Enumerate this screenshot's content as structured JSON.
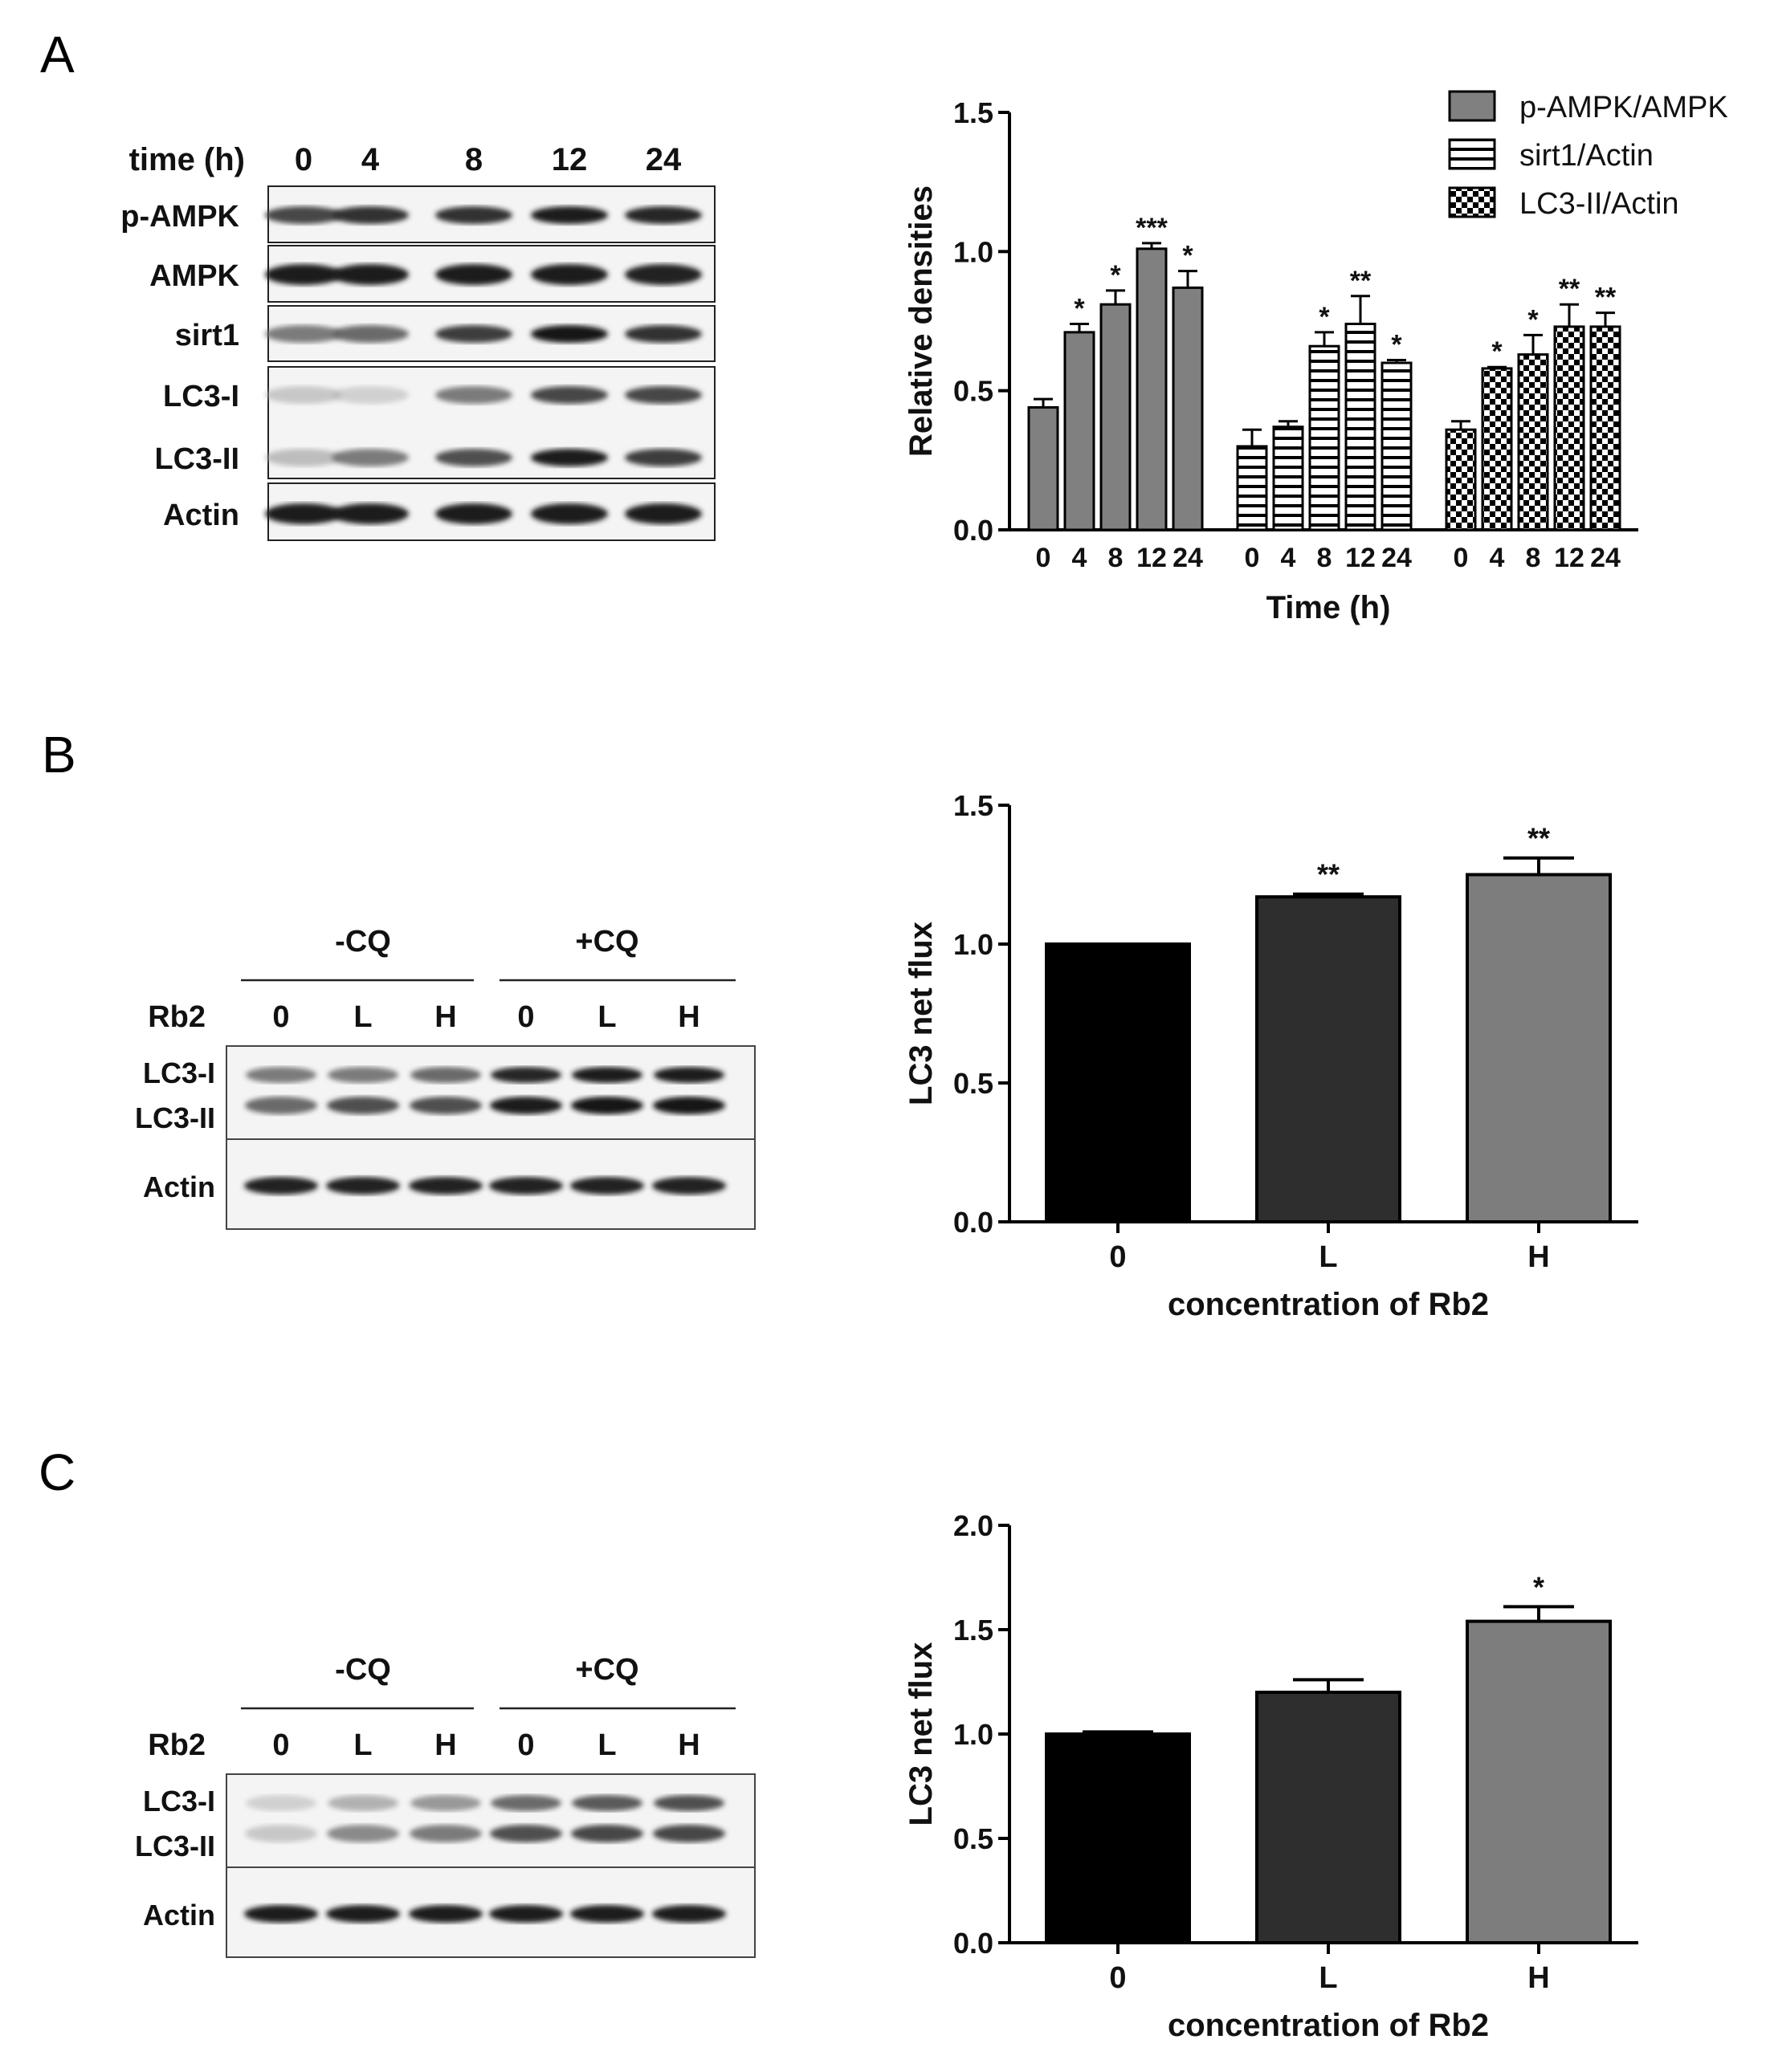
{
  "panels": [
    {
      "letter": "A",
      "blot": {
        "header_label": "time (h)",
        "lanes": [
          "0",
          "4",
          "8",
          "12",
          "24"
        ],
        "rows": [
          {
            "label": "p-AMPK",
            "intensity": [
              0.75,
              0.85,
              0.85,
              0.95,
              0.9
            ]
          },
          {
            "label": "AMPK",
            "intensity": [
              0.95,
              0.95,
              0.95,
              0.95,
              0.92
            ]
          },
          {
            "label": "sirt1",
            "intensity": [
              0.55,
              0.6,
              0.8,
              0.98,
              0.85
            ]
          },
          {
            "label": "LC3-I",
            "intensity": [
              0.25,
              0.2,
              0.55,
              0.75,
              0.75
            ]
          },
          {
            "label": "LC3-II",
            "intensity": [
              0.3,
              0.55,
              0.7,
              0.95,
              0.8
            ]
          },
          {
            "label": "Actin",
            "intensity": [
              0.95,
              0.95,
              0.95,
              0.95,
              0.95
            ]
          }
        ]
      }
    },
    {
      "letter": "B",
      "blot": {
        "groups": [
          "-CQ",
          "+CQ"
        ],
        "row_label": "Rb2",
        "lanes": [
          "0",
          "L",
          "H",
          "0",
          "L",
          "H"
        ],
        "bands": [
          "LC3-I",
          "LC3-II",
          "Actin"
        ],
        "lc3i_intensity": [
          0.55,
          0.55,
          0.6,
          0.9,
          0.95,
          0.95
        ],
        "lc3ii_intensity": [
          0.6,
          0.7,
          0.7,
          0.95,
          1.0,
          1.0
        ],
        "actin_intensity": [
          0.92,
          0.92,
          0.92,
          0.92,
          0.92,
          0.92
        ]
      }
    },
    {
      "letter": "C",
      "blot": {
        "groups": [
          "-CQ",
          "+CQ"
        ],
        "row_label": "Rb2",
        "lanes": [
          "0",
          "L",
          "H",
          "0",
          "L",
          "H"
        ],
        "bands": [
          "LC3-I",
          "LC3-II",
          "Actin"
        ],
        "lc3i_intensity": [
          0.2,
          0.35,
          0.45,
          0.6,
          0.65,
          0.7
        ],
        "lc3ii_intensity": [
          0.25,
          0.5,
          0.55,
          0.7,
          0.75,
          0.75
        ],
        "actin_intensity": [
          0.95,
          0.95,
          0.95,
          0.95,
          0.95,
          0.95
        ]
      }
    }
  ],
  "chart_data": [
    {
      "type": "bar",
      "panel": "A",
      "title": "",
      "xlabel": "Time (h)",
      "ylabel": "Relative densities",
      "ylim": [
        0,
        1.5
      ],
      "yticks": [
        "0.0",
        "0.5",
        "1.0",
        "1.5"
      ],
      "categories": [
        "0",
        "4",
        "8",
        "12",
        "24"
      ],
      "legend_position": "top-right",
      "series": [
        {
          "name": "p-AMPK/AMPK",
          "pattern": "solid-gray",
          "color": "#808080",
          "values": [
            0.44,
            0.71,
            0.81,
            1.01,
            0.87
          ],
          "errors": [
            0.03,
            0.03,
            0.05,
            0.02,
            0.06
          ],
          "significance": [
            "",
            "*",
            "*",
            "***",
            "*"
          ]
        },
        {
          "name": "sirt1/Actin",
          "pattern": "horizontal-stripes",
          "color": "#ffffff",
          "values": [
            0.3,
            0.37,
            0.66,
            0.74,
            0.6
          ],
          "errors": [
            0.06,
            0.02,
            0.05,
            0.1,
            0.01
          ],
          "significance": [
            "",
            "",
            "*",
            "**",
            "*"
          ]
        },
        {
          "name": "LC3-II/Actin",
          "pattern": "checkerboard",
          "color": "#ffffff",
          "values": [
            0.36,
            0.58,
            0.63,
            0.73,
            0.73
          ],
          "errors": [
            0.03,
            0.005,
            0.07,
            0.08,
            0.05
          ],
          "significance": [
            "",
            "*",
            "*",
            "**",
            "**"
          ]
        }
      ]
    },
    {
      "type": "bar",
      "panel": "B",
      "title": "",
      "xlabel": "concentration of Rb2",
      "ylabel": "LC3 net flux",
      "ylim": [
        0,
        1.5
      ],
      "yticks": [
        "0.0",
        "0.5",
        "1.0",
        "1.5"
      ],
      "categories": [
        "0",
        "L",
        "H"
      ],
      "values": [
        1.0,
        1.17,
        1.25
      ],
      "errors": [
        0.0,
        0.01,
        0.06
      ],
      "significance": [
        "",
        "**",
        "**"
      ],
      "colors": [
        "#000000",
        "#2e2e2e",
        "#7d7d7d"
      ]
    },
    {
      "type": "bar",
      "panel": "C",
      "title": "",
      "xlabel": "concentration of Rb2",
      "ylabel": "LC3 net flux",
      "ylim": [
        0,
        2.0
      ],
      "yticks": [
        "0.0",
        "0.5",
        "1.0",
        "1.5",
        "2.0"
      ],
      "categories": [
        "0",
        "L",
        "H"
      ],
      "values": [
        1.0,
        1.2,
        1.54
      ],
      "errors": [
        0.01,
        0.06,
        0.07
      ],
      "significance": [
        "",
        "",
        "*"
      ],
      "colors": [
        "#000000",
        "#2e2e2e",
        "#7d7d7d"
      ]
    }
  ]
}
